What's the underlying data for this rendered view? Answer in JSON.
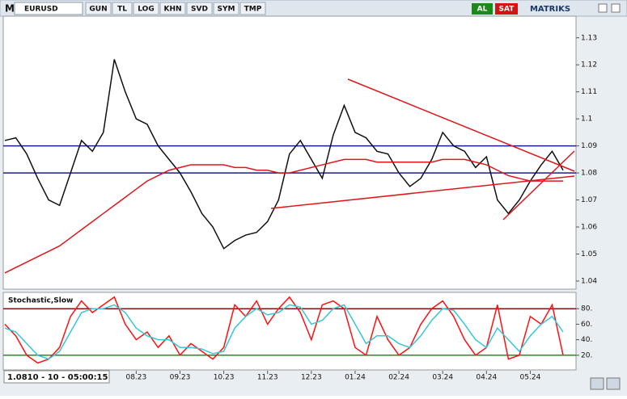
{
  "toolbar": {
    "logo": "M",
    "symbol": "EURUSD",
    "buttons": [
      "GUN",
      "TL",
      "LOG",
      "KHN",
      "SVD",
      "SYM",
      "TMP"
    ],
    "buy": "AL",
    "sell": "SAT",
    "brand": "MATRIKS"
  },
  "status": "1.0810 - 10 - 05:00:15",
  "chart_data": [
    {
      "type": "line",
      "categories": [
        null,
        null,
        null,
        null,
        null,
        null,
        null,
        null,
        null,
        null,
        null,
        null,
        "08.23",
        null,
        null,
        null,
        "09.23",
        null,
        null,
        null,
        "10.23",
        null,
        null,
        null,
        "11.23",
        null,
        null,
        null,
        "12.23",
        null,
        null,
        null,
        "01.24",
        null,
        null,
        null,
        "02.24",
        null,
        null,
        null,
        "03.24",
        null,
        null,
        null,
        "04.24",
        null,
        null,
        null,
        "05.24",
        null,
        null,
        null
      ],
      "series": [
        {
          "color": "#111111",
          "values": [
            1.092,
            1.093,
            1.087,
            1.078,
            1.07,
            1.068,
            1.08,
            1.092,
            1.088,
            1.095,
            1.122,
            1.11,
            1.1,
            1.098,
            1.09,
            1.085,
            1.08,
            1.073,
            1.065,
            1.06,
            1.052,
            1.055,
            1.057,
            1.058,
            1.062,
            1.07,
            1.087,
            1.092,
            1.085,
            1.078,
            1.094,
            1.105,
            1.095,
            1.093,
            1.088,
            1.087,
            1.08,
            1.075,
            1.078,
            1.085,
            1.095,
            1.09,
            1.088,
            1.082,
            1.086,
            1.07,
            1.065,
            1.07,
            1.077,
            1.083,
            1.088,
            1.081
          ]
        },
        {
          "color": "#e0161b",
          "values": [
            1.043,
            1.045,
            1.047,
            1.049,
            1.051,
            1.053,
            1.056,
            1.059,
            1.062,
            1.065,
            1.068,
            1.071,
            1.074,
            1.077,
            1.079,
            1.081,
            1.082,
            1.083,
            1.083,
            1.083,
            1.083,
            1.082,
            1.082,
            1.081,
            1.081,
            1.08,
            1.08,
            1.081,
            1.082,
            1.083,
            1.084,
            1.085,
            1.085,
            1.085,
            1.084,
            1.084,
            1.084,
            1.084,
            1.084,
            1.084,
            1.085,
            1.085,
            1.085,
            1.084,
            1.083,
            1.081,
            1.079,
            1.078,
            1.077,
            1.077,
            1.077,
            1.077
          ]
        }
      ],
      "levels": [
        1.09,
        1.08
      ],
      "level_color": "#1b1f8f",
      "ylim": [
        1.037,
        1.138
      ],
      "yticks": [
        1.04,
        1.05,
        1.06,
        1.07,
        1.08,
        1.09,
        1.1,
        1.11,
        1.12,
        1.13
      ]
    },
    {
      "type": "line",
      "title": "Stochastic,Slow",
      "series": [
        {
          "color": "#ff1010",
          "values": [
            60,
            45,
            20,
            10,
            15,
            30,
            70,
            90,
            75,
            85,
            95,
            60,
            40,
            50,
            30,
            45,
            20,
            35,
            25,
            15,
            30,
            85,
            70,
            90,
            60,
            80,
            95,
            75,
            40,
            85,
            90,
            80,
            30,
            20,
            70,
            40,
            20,
            30,
            60,
            80,
            90,
            70,
            40,
            20,
            30,
            85,
            15,
            20,
            70,
            60,
            85,
            20
          ]
        },
        {
          "color": "#33c7d8",
          "values": [
            55,
            50,
            35,
            20,
            15,
            25,
            50,
            75,
            80,
            80,
            85,
            75,
            55,
            45,
            40,
            40,
            30,
            30,
            28,
            22,
            25,
            55,
            70,
            80,
            72,
            75,
            85,
            82,
            60,
            65,
            80,
            85,
            60,
            35,
            45,
            45,
            35,
            30,
            45,
            65,
            80,
            78,
            60,
            40,
            30,
            55,
            40,
            25,
            45,
            60,
            70,
            50
          ]
        }
      ],
      "levels": [
        {
          "value": 80,
          "color": "#8b1010"
        },
        {
          "value": 20,
          "color": "#129a12"
        }
      ],
      "ylim": [
        0,
        100
      ],
      "yticks": [
        {
          "value": 20,
          "label": "20."
        },
        {
          "value": 40,
          "label": "40."
        },
        {
          "value": 60,
          "label": "60."
        },
        {
          "value": 80,
          "label": "80."
        }
      ]
    }
  ]
}
